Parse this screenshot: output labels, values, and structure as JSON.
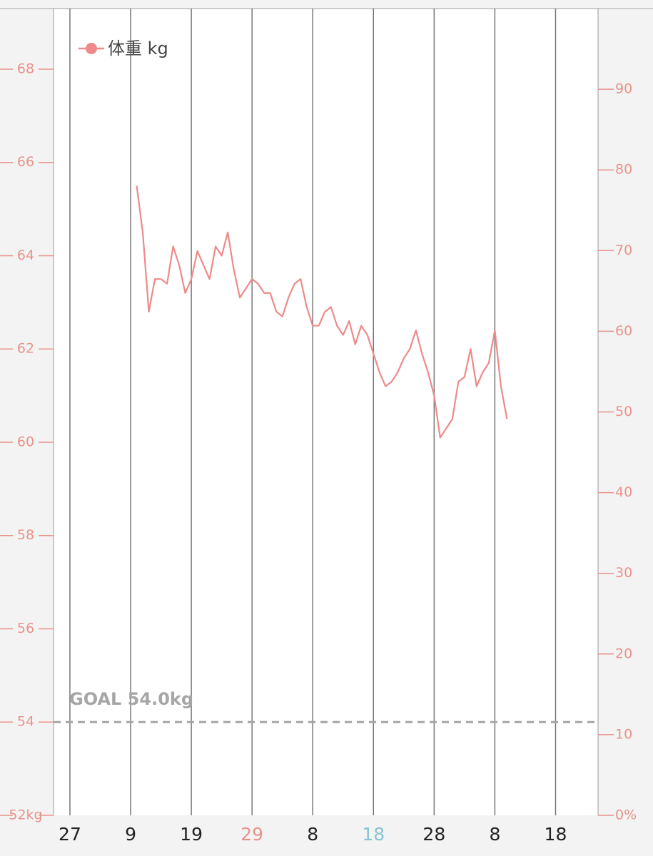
{
  "chart_data": {
    "type": "line",
    "legend": "体重 kg",
    "legend_corner": "top-left",
    "goal": {
      "value": 54,
      "label": "GOAL 54.0kg",
      "color": "#a6a6a6"
    },
    "x": [
      11,
      12,
      13,
      14,
      15,
      16,
      17,
      18,
      19,
      20,
      21,
      22,
      23,
      24,
      25,
      26,
      27,
      28,
      29,
      30,
      31,
      32,
      33,
      34,
      35,
      36,
      37,
      38,
      39,
      40,
      41,
      42,
      43,
      44,
      45,
      46,
      47,
      48,
      49,
      50,
      51,
      52,
      53,
      54,
      55,
      56,
      57,
      58,
      59,
      60,
      61,
      62,
      63,
      64,
      65,
      66,
      67,
      68,
      69,
      70,
      71,
      72
    ],
    "series": [
      {
        "name": "体重 kg",
        "color": "#ee8a8a",
        "values": [
          65.5,
          64.5,
          62.8,
          63.5,
          63.5,
          63.4,
          64.2,
          63.8,
          63.2,
          63.5,
          64.1,
          63.8,
          63.5,
          64.2,
          64.0,
          64.5,
          63.7,
          63.1,
          63.3,
          63.5,
          63.4,
          63.2,
          63.2,
          62.8,
          62.7,
          63.1,
          63.4,
          63.5,
          62.9,
          62.5,
          62.5,
          62.8,
          62.9,
          62.5,
          62.3,
          62.6,
          62.1,
          62.5,
          62.3,
          61.9,
          61.5,
          61.2,
          61.3,
          61.5,
          61.8,
          62.0,
          62.4,
          61.9,
          61.5,
          61.0,
          60.1,
          60.3,
          60.5,
          61.3,
          61.4,
          62.0,
          61.2,
          61.5,
          61.7,
          62.4,
          61.2,
          60.5
        ]
      }
    ],
    "xlim": [
      -2.7,
      87
    ],
    "xticks": [
      {
        "value": 0,
        "label": "27"
      },
      {
        "value": 10,
        "label": "9"
      },
      {
        "value": 20,
        "label": "19"
      },
      {
        "value": 30,
        "label": "29"
      },
      {
        "value": 40,
        "label": "8"
      },
      {
        "value": 50,
        "label": "18"
      },
      {
        "value": 60,
        "label": "28"
      },
      {
        "value": 70,
        "label": "8"
      },
      {
        "value": 80,
        "label": "18"
      }
    ],
    "xtick_colors": [
      "#222222",
      "#222222",
      "#222222",
      "#e8938a",
      "#222222",
      "#86c3d4",
      "#222222",
      "#222222",
      "#222222"
    ],
    "ylim": [
      52,
      69.3
    ],
    "yticks": [
      {
        "value": 52,
        "label": "52kg"
      },
      54,
      56,
      58,
      60,
      62,
      64,
      66,
      68
    ],
    "y2lim": [
      0,
      100
    ],
    "y2ticks": [
      {
        "value": 0,
        "label": "0%"
      },
      10,
      20,
      30,
      40,
      50,
      60,
      70,
      80,
      90
    ],
    "axis_color": "#e8938a",
    "grid": true
  }
}
